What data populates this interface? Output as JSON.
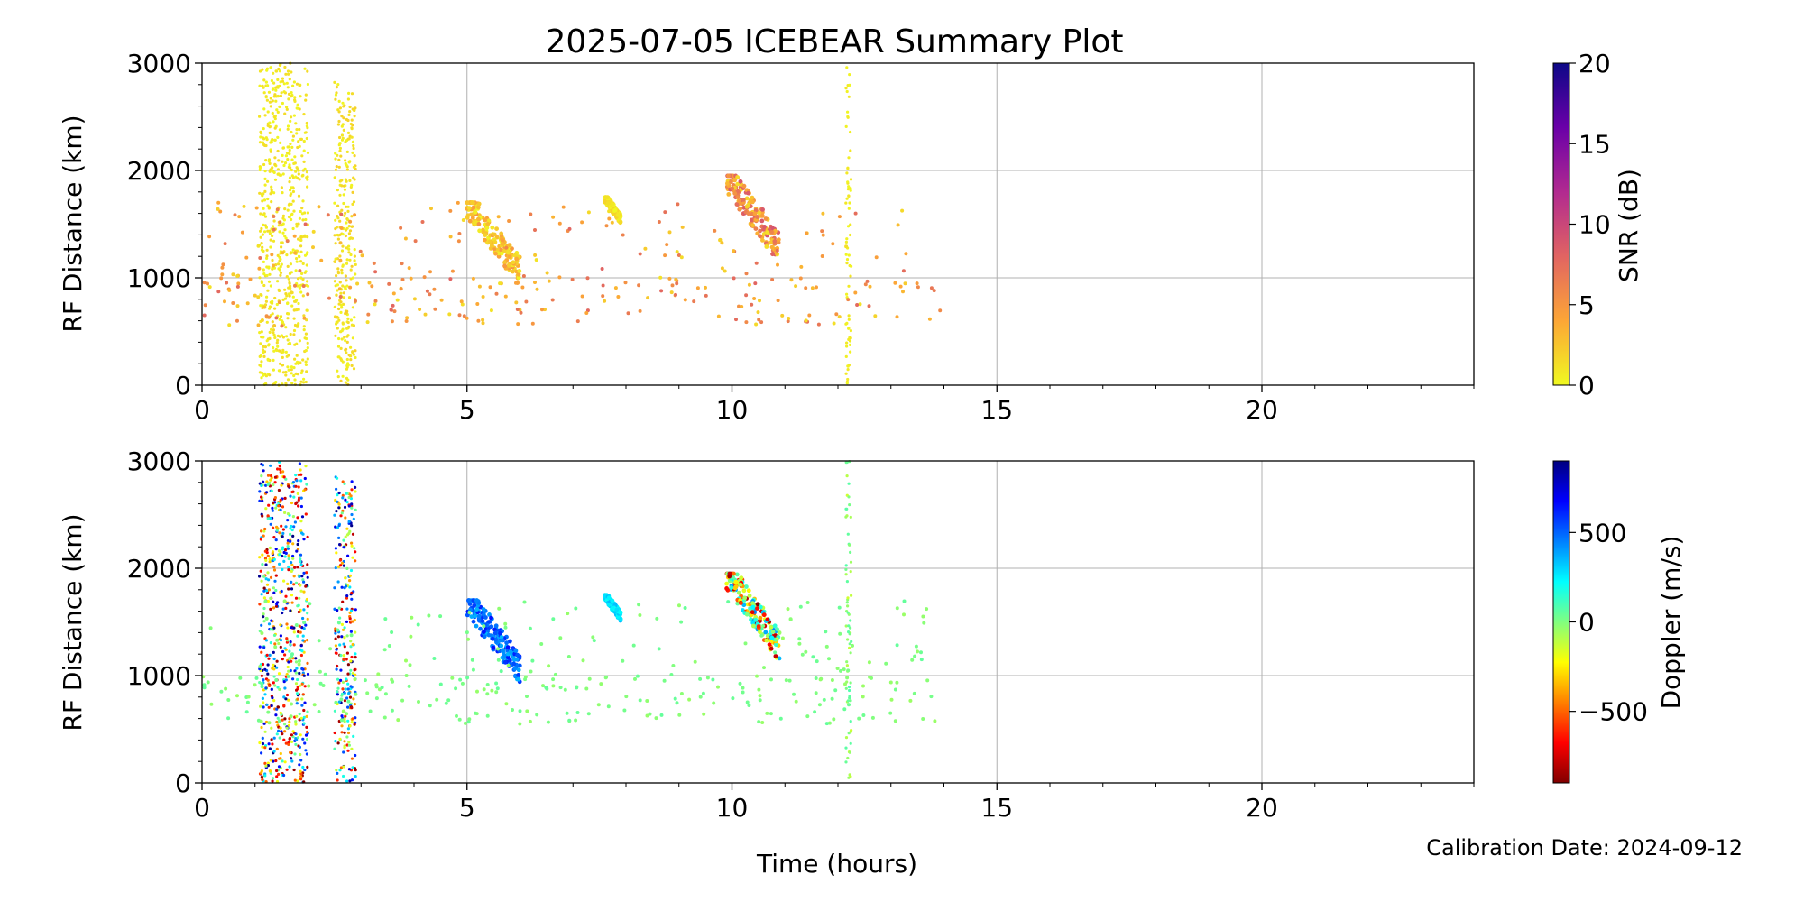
{
  "figure": {
    "title": "2025-07-05 ICEBEAR Summary Plot",
    "calibration_note": "Calibration Date: 2024-09-12"
  },
  "chart_data": [
    {
      "type": "scatter",
      "id": "snr-panel",
      "xlabel": "",
      "ylabel": "RF Distance (km)",
      "xlim": [
        0,
        24
      ],
      "ylim": [
        0,
        3000
      ],
      "x_ticks": [
        0,
        5,
        10,
        15,
        20
      ],
      "y_ticks": [
        0,
        1000,
        2000,
        3000
      ],
      "grid": true,
      "colorbar": {
        "label": "SNR (dB)",
        "colormap": "plasma_r",
        "range": [
          0,
          20
        ],
        "ticks": [
          0,
          5,
          10,
          15,
          20
        ],
        "ticklabels": [
          "0",
          "5",
          "10",
          "15",
          "20"
        ]
      },
      "color_encoding": "snr",
      "features": [
        {
          "kind": "vertical_band",
          "x_range": [
            1.08,
            2.0
          ],
          "y_range": [
            0,
            3000
          ],
          "value_range": [
            0,
            1.5
          ]
        },
        {
          "kind": "vertical_band",
          "x_range": [
            2.5,
            2.9
          ],
          "y_range": [
            0,
            2850
          ],
          "value_range": [
            0,
            2
          ]
        },
        {
          "kind": "vertical_band",
          "x_range": [
            12.15,
            12.25
          ],
          "y_range": [
            0,
            3000
          ],
          "value_range": [
            0,
            1
          ]
        },
        {
          "kind": "cluster",
          "x_range": [
            5.0,
            6.0
          ],
          "y_range": [
            900,
            1700
          ],
          "value_range": [
            0,
            5
          ]
        },
        {
          "kind": "cluster",
          "x_range": [
            7.6,
            7.9
          ],
          "y_range": [
            1500,
            1750
          ],
          "value_range": [
            0,
            2
          ]
        },
        {
          "kind": "cluster",
          "x_range": [
            9.9,
            10.9
          ],
          "y_range": [
            1100,
            1950
          ],
          "value_range": [
            1,
            9
          ]
        },
        {
          "kind": "scatter",
          "x_range": [
            0,
            14
          ],
          "y_range": [
            300,
            1700
          ],
          "value_range": [
            1,
            8
          ]
        }
      ]
    },
    {
      "type": "scatter",
      "id": "doppler-panel",
      "xlabel": "Time (hours)",
      "ylabel": "RF Distance (km)",
      "xlim": [
        0,
        24
      ],
      "ylim": [
        0,
        3000
      ],
      "x_ticks": [
        0,
        5,
        10,
        15,
        20
      ],
      "y_ticks": [
        0,
        1000,
        2000,
        3000
      ],
      "grid": true,
      "colorbar": {
        "label": "Doppler (m/s)",
        "colormap": "jet_r",
        "range": [
          -900,
          900
        ],
        "ticks": [
          -500,
          0,
          500
        ],
        "ticklabels": [
          "−500",
          "0",
          "500"
        ]
      },
      "color_encoding": "doppler",
      "features": [
        {
          "kind": "vertical_band",
          "x_range": [
            1.08,
            2.0
          ],
          "y_range": [
            0,
            3000
          ],
          "value_range": [
            -900,
            900
          ]
        },
        {
          "kind": "vertical_band",
          "x_range": [
            2.5,
            2.9
          ],
          "y_range": [
            0,
            2850
          ],
          "value_range": [
            -900,
            900
          ]
        },
        {
          "kind": "vertical_band",
          "x_range": [
            12.15,
            12.25
          ],
          "y_range": [
            0,
            3000
          ],
          "value_range": [
            -150,
            100
          ]
        },
        {
          "kind": "cluster",
          "x_range": [
            5.0,
            6.0
          ],
          "y_range": [
            900,
            1700
          ],
          "value_range": [
            350,
            650
          ]
        },
        {
          "kind": "cluster",
          "x_range": [
            7.6,
            7.9
          ],
          "y_range": [
            1500,
            1750
          ],
          "value_range": [
            200,
            350
          ]
        },
        {
          "kind": "cluster",
          "x_range": [
            9.9,
            10.9
          ],
          "y_range": [
            1100,
            1950
          ],
          "value_range": [
            -900,
            450
          ]
        },
        {
          "kind": "scatter",
          "x_range": [
            0,
            14
          ],
          "y_range": [
            300,
            1700
          ],
          "value_range": [
            -50,
            50
          ]
        }
      ]
    }
  ]
}
